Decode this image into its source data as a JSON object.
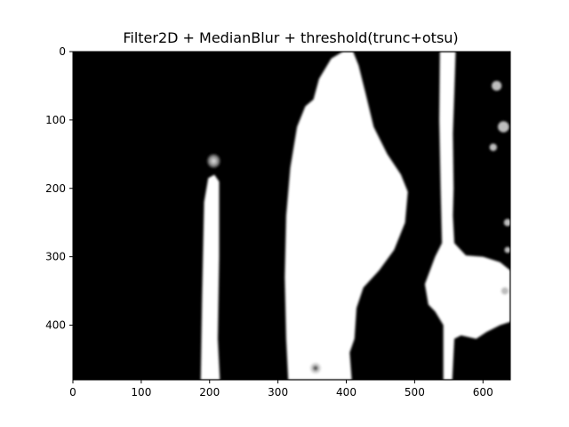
{
  "chart_data": {
    "type": "heatmap",
    "title": "Filter2D + MedianBlur + threshold(trunc+otsu)",
    "xlabel": "",
    "ylabel": "",
    "xlim": [
      0,
      640
    ],
    "ylim": [
      480,
      0
    ],
    "grid": false,
    "colormap": "gray",
    "xticks": [
      0,
      100,
      200,
      300,
      400,
      500,
      600
    ],
    "yticks": [
      0,
      100,
      200,
      300,
      400
    ],
    "image_description_regions": [
      {
        "name": "thin-bar",
        "x_range": [
          188,
          215
        ],
        "y_range": [
          180,
          480
        ],
        "value": "white"
      },
      {
        "name": "spot-above-bar",
        "x": 206,
        "y": 158,
        "value": "light-gray"
      },
      {
        "name": "central-blob",
        "x_range": [
          315,
          490
        ],
        "y_range": [
          0,
          480
        ],
        "value": "white"
      },
      {
        "name": "right-strip",
        "x_range": [
          535,
          560
        ],
        "y_range": [
          0,
          480
        ],
        "value": "white"
      },
      {
        "name": "right-bulge",
        "x_range": [
          560,
          640
        ],
        "y_range": [
          300,
          400
        ],
        "value": "white"
      },
      {
        "name": "small-dot",
        "x": 355,
        "y": 462,
        "value": "white"
      }
    ]
  },
  "colors": {
    "background": "#ffffff",
    "image_dark": "#000000",
    "image_light": "#ffffff",
    "axis": "#000000"
  }
}
